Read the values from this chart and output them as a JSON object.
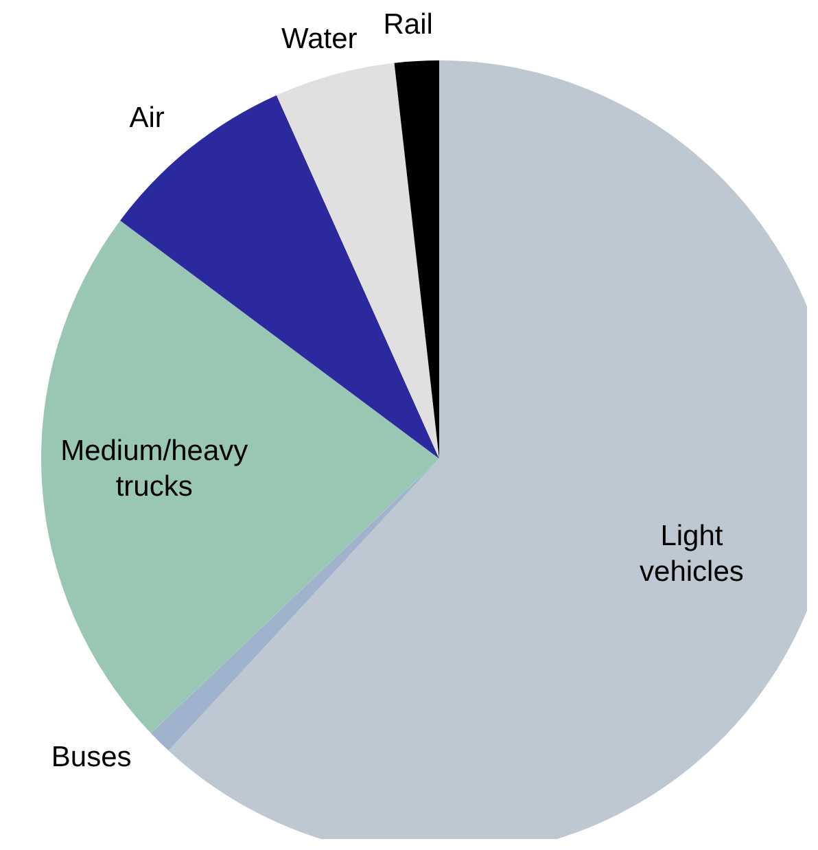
{
  "chart_data": {
    "type": "pie",
    "categories": [
      "Light vehicles",
      "Buses",
      "Medium/heavy trucks",
      "Air",
      "Water",
      "Rail"
    ],
    "values": [
      61.9,
      1.0,
      22.3,
      8.1,
      4.9,
      1.8
    ],
    "colors": [
      "#bdc8d2",
      "#9fb4cc",
      "#99c7b4",
      "#2a2a9e",
      "#e0e0e0",
      "#000000"
    ]
  }
}
